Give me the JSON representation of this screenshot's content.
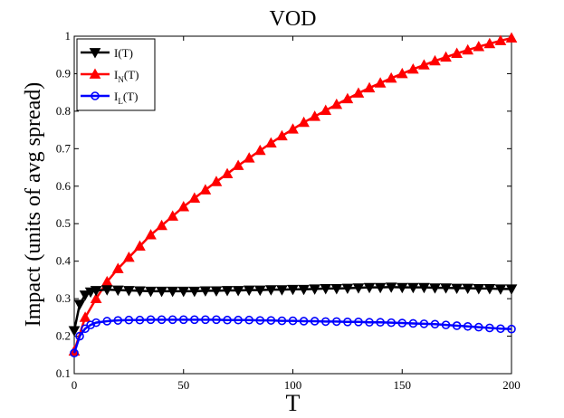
{
  "chart_data": {
    "type": "line",
    "title": "VOD",
    "xlabel": "T",
    "ylabel": "Impact (units of avg spread)",
    "xlim": [
      0,
      200
    ],
    "ylim": [
      0.1,
      1
    ],
    "x_ticks": [
      "0",
      "50",
      "100",
      "150",
      "200"
    ],
    "y_ticks": [
      "0.1",
      "0.2",
      "0.3",
      "0.4",
      "0.5",
      "0.6",
      "0.7",
      "0.8",
      "0.9",
      "1"
    ],
    "legend_position": "top-left",
    "legend": [
      {
        "main": "I",
        "sub": "",
        "suffix": "(T)"
      },
      {
        "main": "I",
        "sub": "N",
        "suffix": "(T)"
      },
      {
        "main": "I",
        "sub": "L",
        "suffix": "(T)"
      }
    ],
    "series": [
      {
        "name": "I(T)",
        "color": "#000000",
        "marker": "triangle-down",
        "x": [
          0,
          2.5,
          5,
          7.5,
          10,
          15,
          20,
          25,
          30,
          35,
          40,
          45,
          50,
          55,
          60,
          65,
          70,
          75,
          80,
          85,
          90,
          95,
          100,
          105,
          110,
          115,
          120,
          125,
          130,
          135,
          140,
          145,
          150,
          155,
          160,
          165,
          170,
          175,
          180,
          185,
          190,
          195,
          200
        ],
        "y": [
          0.215,
          0.285,
          0.31,
          0.318,
          0.322,
          0.324,
          0.323,
          0.322,
          0.321,
          0.32,
          0.32,
          0.32,
          0.32,
          0.32,
          0.321,
          0.321,
          0.322,
          0.322,
          0.323,
          0.323,
          0.324,
          0.324,
          0.325,
          0.325,
          0.326,
          0.327,
          0.327,
          0.328,
          0.329,
          0.33,
          0.33,
          0.331,
          0.33,
          0.33,
          0.33,
          0.329,
          0.329,
          0.328,
          0.328,
          0.327,
          0.327,
          0.326,
          0.326
        ]
      },
      {
        "name": "I_N(T)",
        "color": "#ff0000",
        "marker": "triangle-up",
        "x": [
          0,
          5,
          10,
          15,
          20,
          25,
          30,
          35,
          40,
          45,
          50,
          55,
          60,
          65,
          70,
          75,
          80,
          85,
          90,
          95,
          100,
          105,
          110,
          115,
          120,
          125,
          130,
          135,
          140,
          145,
          150,
          155,
          160,
          165,
          170,
          175,
          180,
          185,
          190,
          195,
          200
        ],
        "y": [
          0.16,
          0.25,
          0.3,
          0.345,
          0.38,
          0.41,
          0.44,
          0.47,
          0.495,
          0.52,
          0.545,
          0.568,
          0.59,
          0.612,
          0.633,
          0.655,
          0.675,
          0.695,
          0.715,
          0.734,
          0.752,
          0.77,
          0.786,
          0.802,
          0.818,
          0.833,
          0.848,
          0.862,
          0.875,
          0.888,
          0.9,
          0.912,
          0.923,
          0.934,
          0.944,
          0.954,
          0.963,
          0.972,
          0.98,
          0.988,
          0.995
        ]
      },
      {
        "name": "I_L(T)",
        "color": "#0000ff",
        "marker": "circle",
        "x": [
          0,
          2.5,
          5,
          7.5,
          10,
          15,
          20,
          25,
          30,
          35,
          40,
          45,
          50,
          55,
          60,
          65,
          70,
          75,
          80,
          85,
          90,
          95,
          100,
          105,
          110,
          115,
          120,
          125,
          130,
          135,
          140,
          145,
          150,
          155,
          160,
          165,
          170,
          175,
          180,
          185,
          190,
          195,
          200
        ],
        "y": [
          0.155,
          0.2,
          0.22,
          0.23,
          0.236,
          0.24,
          0.242,
          0.243,
          0.243,
          0.244,
          0.244,
          0.244,
          0.244,
          0.244,
          0.244,
          0.244,
          0.243,
          0.243,
          0.243,
          0.242,
          0.242,
          0.241,
          0.241,
          0.24,
          0.24,
          0.239,
          0.239,
          0.238,
          0.238,
          0.237,
          0.237,
          0.236,
          0.235,
          0.234,
          0.233,
          0.232,
          0.23,
          0.228,
          0.226,
          0.224,
          0.222,
          0.22,
          0.219
        ]
      }
    ]
  }
}
